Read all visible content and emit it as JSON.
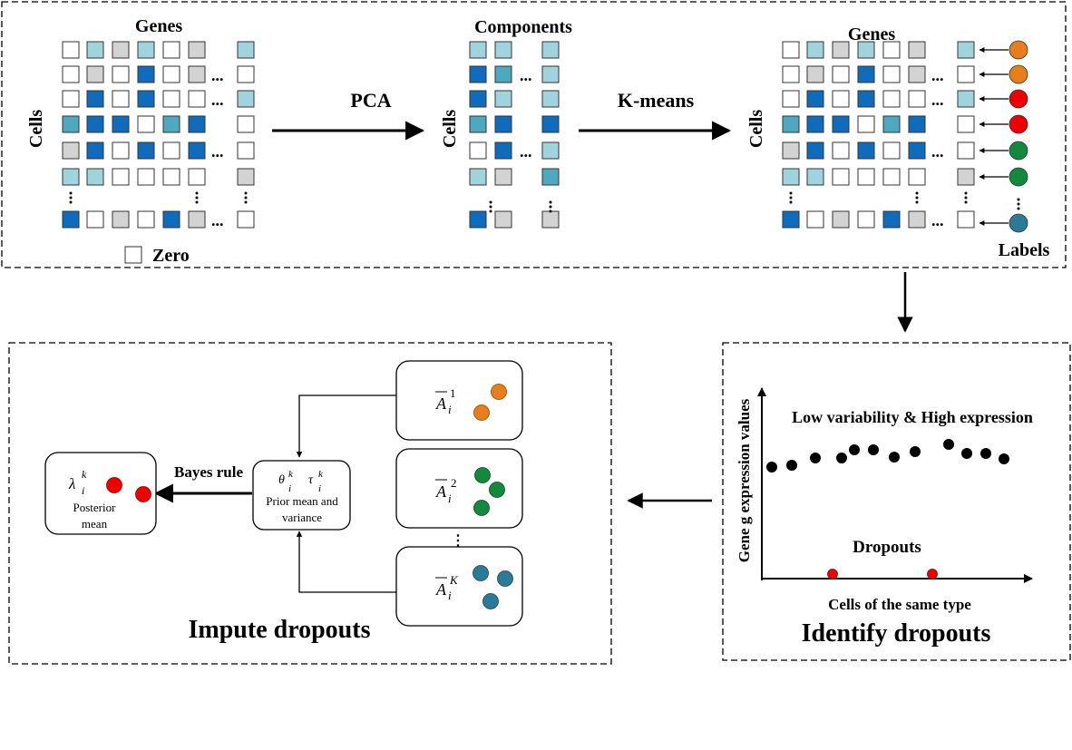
{
  "colors": {
    "white": "#ffffff",
    "light_blue": "#9fd3de",
    "mid_blue": "#4ea8c0",
    "dark_blue": "#0f6cbd",
    "gray": "#d3d3d3",
    "orange": "#e87e1a",
    "red": "#ee0000",
    "green": "#12893c",
    "teal": "#2b7b96",
    "black": "#000000"
  },
  "top_panel": {
    "genes_label": "Genes",
    "cells_label": "Cells",
    "zero_label": "Zero",
    "components_label": "Components",
    "pca_label": "PCA",
    "kmeans_label": "K-means",
    "labels_label": "Labels",
    "ellipsis": "...",
    "matrix1_rows": [
      [
        "white",
        "light_blue",
        "gray",
        "light_blue",
        "white",
        "gray",
        "light_blue"
      ],
      [
        "white",
        "gray",
        "white",
        "dark_blue",
        "white",
        "gray",
        "white"
      ],
      [
        "white",
        "dark_blue",
        "white",
        "dark_blue",
        "white",
        "white",
        "light_blue"
      ],
      [
        "mid_blue",
        "dark_blue",
        "dark_blue",
        "white",
        "mid_blue",
        "dark_blue",
        "white"
      ],
      [
        "gray",
        "dark_blue",
        "white",
        "dark_blue",
        "white",
        "dark_blue",
        "white"
      ],
      [
        "light_blue",
        "light_blue",
        "white",
        "white",
        "white",
        "white",
        "gray"
      ],
      [
        "dark_blue",
        "white",
        "gray",
        "white",
        "dark_blue",
        "gray",
        "white"
      ]
    ],
    "matrix2_rows": [
      [
        "light_blue",
        "light_blue",
        "light_blue"
      ],
      [
        "dark_blue",
        "mid_blue",
        "light_blue"
      ],
      [
        "dark_blue",
        "light_blue",
        "light_blue"
      ],
      [
        "mid_blue",
        "dark_blue",
        "dark_blue"
      ],
      [
        "white",
        "dark_blue",
        "light_blue"
      ],
      [
        "light_blue",
        "gray",
        "mid_blue"
      ],
      [
        "dark_blue",
        "gray",
        "gray"
      ]
    ],
    "label_dots": [
      "orange",
      "orange",
      "red",
      "red",
      "green",
      "green",
      "teal"
    ]
  },
  "identify_panel": {
    "title": "Identify dropouts",
    "y_label": "Gene g expression values",
    "x_label": "Cells of the same type",
    "high_label": "Low variability & High expression",
    "dropouts_label": "Dropouts"
  },
  "impute_panel": {
    "title": "Impute dropouts",
    "bayes_label": "Bayes rule",
    "posterior_symbol": "λ",
    "posterior_sup": "k",
    "posterior_sub": "i",
    "posterior_line1": "Posterior",
    "posterior_line2": "mean",
    "prior_theta": "θ",
    "prior_tau": "τ",
    "prior_sup": "k",
    "prior_sub": "i",
    "prior_line1": "Prior mean  and",
    "prior_line2": "variance",
    "cluster_symbol": "A",
    "cluster_sub": "i",
    "cluster_sups": [
      "1",
      "2",
      "K"
    ],
    "ellipsis": "⋮"
  }
}
